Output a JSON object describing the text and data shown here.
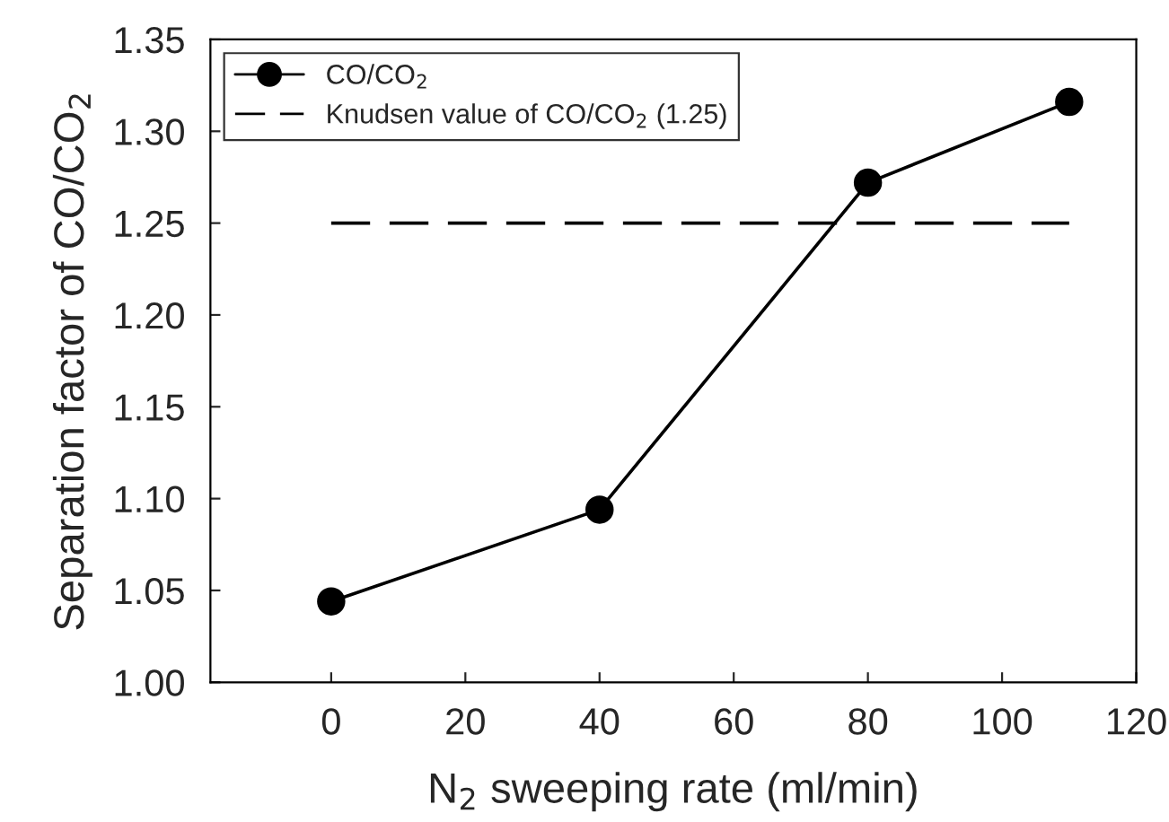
{
  "chart_data": {
    "type": "line",
    "xlabel": "N$_{2}$ sweeping rate (ml/min)",
    "ylabel": "Separation factor of CO/CO$_{2}$",
    "x": [
      0,
      40,
      80,
      110
    ],
    "series": [
      {
        "name": "CO/CO$_{2}$",
        "color": "#000000",
        "values": [
          1.044,
          1.094,
          1.272,
          1.316
        ],
        "marker": "circle",
        "line_style": "solid"
      },
      {
        "name": "Knudsen value of CO/CO$_{2}$ (1.25)",
        "color": "#000000",
        "x": [
          0,
          110
        ],
        "values": [
          1.25,
          1.25
        ],
        "marker": "none",
        "line_style": "dashed"
      }
    ],
    "xlim": [
      -18,
      120
    ],
    "xticks": [
      0,
      20,
      40,
      60,
      80,
      100,
      120
    ],
    "ylim": [
      1.0,
      1.35
    ],
    "yticks": [
      {
        "value": 1.0,
        "label": "1.00"
      },
      {
        "value": 1.05,
        "label": "1.05"
      },
      {
        "value": 1.1,
        "label": "1.10"
      },
      {
        "value": 1.15,
        "label": "1.15"
      },
      {
        "value": 1.2,
        "label": "1.20"
      },
      {
        "value": 1.25,
        "label": "1.25"
      },
      {
        "value": 1.3,
        "label": "1.30"
      },
      {
        "value": 1.35,
        "label": "1.35"
      }
    ],
    "grid": false,
    "legend": "top left"
  }
}
